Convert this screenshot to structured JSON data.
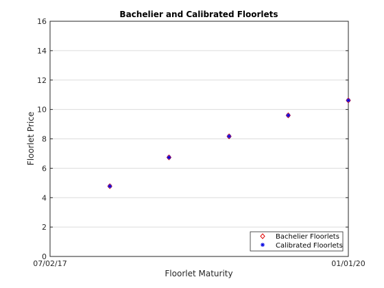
{
  "chart_data": {
    "type": "scatter",
    "title": "Bachelier and Calibrated Floorlets",
    "xlabel": "Floorlet Maturity",
    "ylabel": "Floorlet Price",
    "ylim": [
      0,
      16
    ],
    "yticks": [
      0,
      2,
      4,
      6,
      8,
      10,
      12,
      14,
      16
    ],
    "xlim": [
      "07/02/17",
      "01/01/20"
    ],
    "xticks": [
      "07/02/17",
      "01/01/20"
    ],
    "grid": "horizontal",
    "legend_position": "bottom-right",
    "x": [
      "01/01/18",
      "07/01/18",
      "01/01/19",
      "07/01/19",
      "01/01/20"
    ],
    "series": [
      {
        "name": "Bachelier Floorlets",
        "marker": "diamond",
        "color": "#e00000",
        "values": [
          4.78,
          6.74,
          8.17,
          9.6,
          10.62
        ]
      },
      {
        "name": "Calibrated Floorlets",
        "marker": "asterisk",
        "color": "#0000e0",
        "values": [
          4.78,
          6.74,
          8.17,
          9.6,
          10.62
        ]
      }
    ]
  }
}
